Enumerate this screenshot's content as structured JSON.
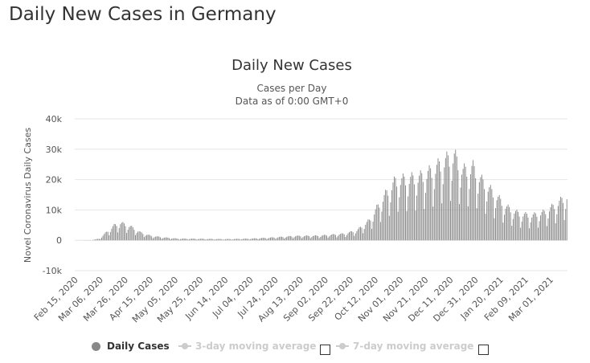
{
  "page": {
    "heading": "Daily New Cases in Germany"
  },
  "chart_data": {
    "type": "bar",
    "title": "Daily New Cases",
    "subtitle_line1": "Cases per Day",
    "subtitle_line2": "Data as of 0:00 GMT+0",
    "ylabel": "Novel Coronavirus Daily Cases",
    "xlabel": "",
    "ylim": [
      -10000,
      40000
    ],
    "yticks": [
      {
        "value": 40000,
        "label": "40k"
      },
      {
        "value": 30000,
        "label": "30k"
      },
      {
        "value": 20000,
        "label": "20k"
      },
      {
        "value": 10000,
        "label": "10k"
      },
      {
        "value": 0,
        "label": "0"
      },
      {
        "value": -10000,
        "label": "-10k"
      }
    ],
    "x_start": "Feb 15, 2020",
    "x_end": "Mar 15, 2021",
    "x_tick_labels": [
      "Feb 15, 2020",
      "Mar 06, 2020",
      "Mar 26, 2020",
      "Apr 15, 2020",
      "May 05, 2020",
      "May 25, 2020",
      "Jun 14, 2020",
      "Jul 04, 2020",
      "Jul 24, 2020",
      "Aug 13, 2020",
      "Sep 02, 2020",
      "Sep 22, 2020",
      "Oct 12, 2020",
      "Nov 01, 2020",
      "Nov 21, 2020",
      "Dec 11, 2020",
      "Dec 31, 2020",
      "Jan 20, 2021",
      "Feb 09, 2021",
      "Mar 01, 2021"
    ],
    "series": [
      {
        "name": "Daily Cases",
        "color": "#888888",
        "weekly_pattern": [
          0.78,
          1.0,
          1.12,
          1.2,
          1.14,
          0.98,
          0.52
        ],
        "weekly_pattern_start_day_index": 0,
        "trend_points": [
          {
            "day": 0,
            "value": 0
          },
          {
            "day": 13,
            "value": 50
          },
          {
            "day": 19,
            "value": 500
          },
          {
            "day": 25,
            "value": 2500
          },
          {
            "day": 31,
            "value": 4500
          },
          {
            "day": 36,
            "value": 5300
          },
          {
            "day": 44,
            "value": 4200
          },
          {
            "day": 52,
            "value": 2400
          },
          {
            "day": 60,
            "value": 1400
          },
          {
            "day": 70,
            "value": 900
          },
          {
            "day": 82,
            "value": 500
          },
          {
            "day": 100,
            "value": 450
          },
          {
            "day": 120,
            "value": 350
          },
          {
            "day": 140,
            "value": 500
          },
          {
            "day": 160,
            "value": 900
          },
          {
            "day": 175,
            "value": 1300
          },
          {
            "day": 195,
            "value": 1400
          },
          {
            "day": 215,
            "value": 2000
          },
          {
            "day": 225,
            "value": 3000
          },
          {
            "day": 235,
            "value": 6000
          },
          {
            "day": 243,
            "value": 11000
          },
          {
            "day": 250,
            "value": 15000
          },
          {
            "day": 256,
            "value": 18000
          },
          {
            "day": 265,
            "value": 18500
          },
          {
            "day": 275,
            "value": 19000
          },
          {
            "day": 285,
            "value": 21000
          },
          {
            "day": 295,
            "value": 24000
          },
          {
            "day": 303,
            "value": 25500
          },
          {
            "day": 310,
            "value": 21000
          },
          {
            "day": 318,
            "value": 22000
          },
          {
            "day": 325,
            "value": 18000
          },
          {
            "day": 335,
            "value": 14000
          },
          {
            "day": 345,
            "value": 10000
          },
          {
            "day": 355,
            "value": 8000
          },
          {
            "day": 365,
            "value": 7500
          },
          {
            "day": 375,
            "value": 8500
          },
          {
            "day": 385,
            "value": 11000
          },
          {
            "day": 393,
            "value": 13500
          }
        ]
      }
    ],
    "legend": [
      {
        "label": "Daily Cases",
        "active": true
      },
      {
        "label": "3-day moving average",
        "active": false
      },
      {
        "label": "7-day moving average",
        "active": false
      }
    ]
  }
}
